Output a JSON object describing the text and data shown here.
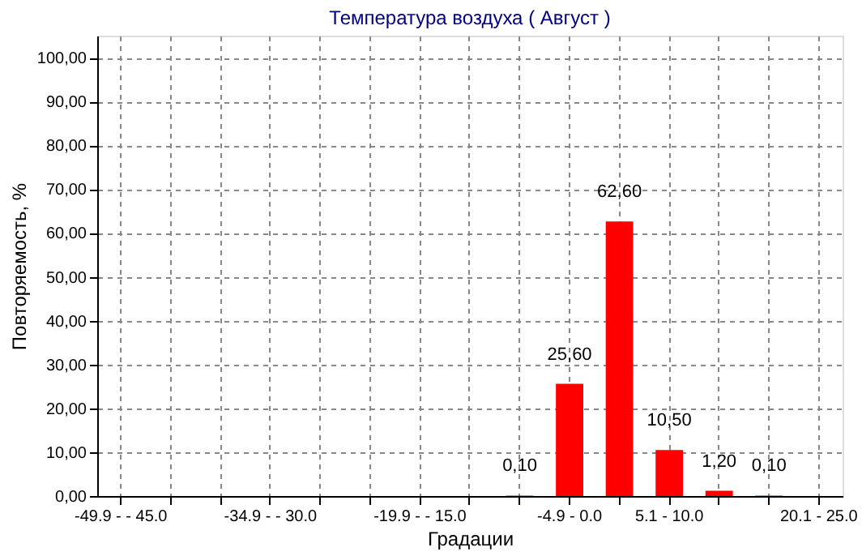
{
  "chart_data": {
    "type": "bar",
    "title": "Температура воздуха     ( Август )",
    "xlabel": "Градации",
    "ylabel": "Повторяемость, %",
    "categories": [
      "-49.9 - - 45.0",
      null,
      null,
      "-34.9 - - 30.0",
      null,
      null,
      "-19.9 - - 15.0",
      null,
      null,
      "-4.9 - 0.0",
      null,
      "5.1 - 10.0",
      null,
      null,
      "20.1 - 25.0"
    ],
    "values": [
      0,
      0,
      0,
      0,
      0,
      0,
      0,
      0,
      0.1,
      25.6,
      62.6,
      10.5,
      1.2,
      0.1,
      0
    ],
    "value_labels": [
      null,
      null,
      null,
      null,
      null,
      null,
      null,
      null,
      "0,10",
      "25,60",
      "62,60",
      "10,50",
      "1,20",
      "0,10",
      null
    ],
    "color": "#ff0000",
    "ylim": [
      0,
      105
    ],
    "yticks": [
      {
        "value": 0,
        "label": "0,00"
      },
      {
        "value": 10,
        "label": "10,00"
      },
      {
        "value": 20,
        "label": "20,00"
      },
      {
        "value": 30,
        "label": "30,00"
      },
      {
        "value": 40,
        "label": "40,00"
      },
      {
        "value": 50,
        "label": "50,00"
      },
      {
        "value": 60,
        "label": "60,00"
      },
      {
        "value": 70,
        "label": "70,00"
      },
      {
        "value": 80,
        "label": "80,00"
      },
      {
        "value": 90,
        "label": "90,00"
      },
      {
        "value": 100,
        "label": "100,00"
      }
    ],
    "grid": true
  }
}
